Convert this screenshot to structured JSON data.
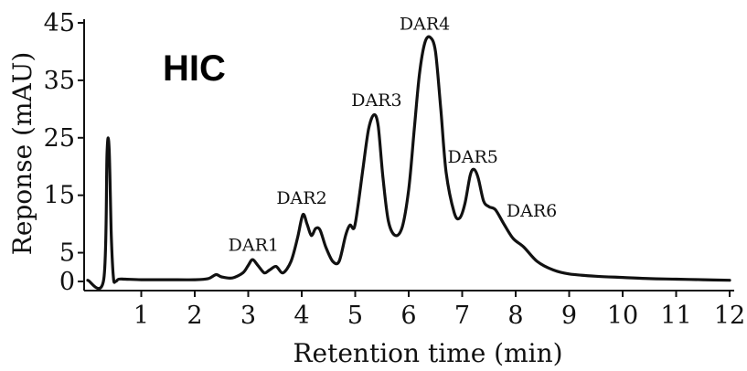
{
  "chart_data": {
    "type": "line",
    "title": "HIC",
    "xlabel": "Retention time (min)",
    "ylabel": "Reponse (mAU)",
    "xlim": [
      0,
      12
    ],
    "ylim": [
      0,
      45
    ],
    "x_ticks": [
      "1",
      "2",
      "3",
      "4",
      "5",
      "6",
      "7",
      "8",
      "9",
      "10",
      "11",
      "12"
    ],
    "y_ticks": [
      "0",
      "5",
      "15",
      "25",
      "35",
      "45"
    ],
    "y_tick_values": [
      0,
      5,
      15,
      25,
      35,
      45
    ],
    "grid": false,
    "annotations": [
      {
        "text": "DAR1",
        "x": 3.1,
        "y": 5.3
      },
      {
        "text": "DAR2",
        "x": 4.0,
        "y": 13.5
      },
      {
        "text": "DAR3",
        "x": 5.4,
        "y": 30.5
      },
      {
        "text": "DAR4",
        "x": 6.3,
        "y": 43.8
      },
      {
        "text": "DAR5",
        "x": 7.2,
        "y": 20.7
      },
      {
        "text": "DAR6",
        "x": 8.3,
        "y": 11.3
      }
    ],
    "series": [
      {
        "x": [
          0.0,
          0.3,
          0.36,
          0.4,
          0.44,
          0.48,
          0.52,
          0.58,
          0.7,
          1.0,
          1.5,
          2.0,
          2.25,
          2.4,
          2.5,
          2.7,
          2.9,
          3.0,
          3.08,
          3.18,
          3.3,
          3.4,
          3.52,
          3.65,
          3.8,
          3.92,
          4.02,
          4.1,
          4.18,
          4.26,
          4.34,
          4.45,
          4.58,
          4.7,
          4.82,
          4.9,
          4.98,
          5.05,
          5.15,
          5.25,
          5.35,
          5.43,
          5.52,
          5.62,
          5.75,
          5.88,
          6.0,
          6.1,
          6.2,
          6.3,
          6.4,
          6.5,
          6.6,
          6.7,
          6.85,
          6.95,
          7.05,
          7.15,
          7.22,
          7.3,
          7.4,
          7.5,
          7.62,
          7.78,
          7.95,
          8.15,
          8.4,
          8.7,
          9.0,
          9.5,
          10.0,
          10.5,
          11.0,
          11.5,
          12.0
        ],
        "values": [
          0.2,
          0.4,
          22.5,
          23.0,
          8.0,
          0.6,
          0.0,
          0.4,
          0.4,
          0.3,
          0.3,
          0.3,
          0.5,
          1.2,
          0.8,
          0.6,
          1.5,
          2.8,
          3.8,
          2.8,
          1.5,
          2.0,
          2.6,
          1.5,
          3.5,
          7.5,
          11.6,
          10.0,
          8.0,
          9.2,
          9.0,
          6.0,
          3.5,
          3.5,
          8.0,
          9.8,
          9.3,
          13.0,
          20.0,
          26.5,
          29.0,
          27.0,
          18.0,
          10.5,
          8.0,
          9.5,
          16.0,
          26.0,
          36.0,
          41.5,
          42.5,
          40.0,
          30.0,
          19.0,
          12.0,
          11.0,
          13.5,
          18.5,
          19.5,
          18.0,
          14.0,
          13.0,
          12.5,
          10.0,
          7.5,
          6.0,
          3.5,
          2.0,
          1.3,
          0.9,
          0.7,
          0.5,
          0.4,
          0.3,
          0.2
        ]
      }
    ]
  }
}
